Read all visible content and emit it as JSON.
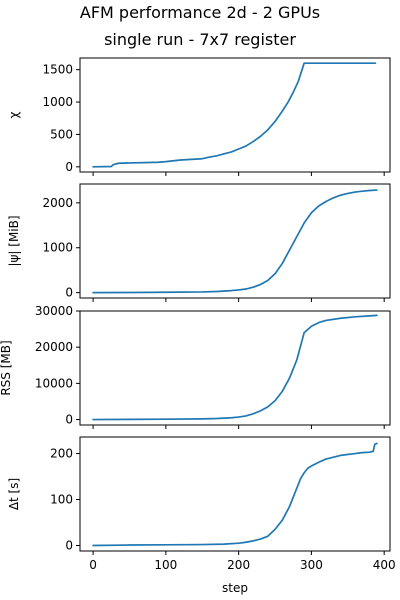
{
  "figure": {
    "title_line1": "AFM performance 2d - 2 GPUs",
    "title_line2": "single run - 7x7 register",
    "line_color": "#1f77b4"
  },
  "chart_data": [
    {
      "type": "line",
      "ylabel": "χ",
      "xlabel": "",
      "xlim": [
        -18,
        408
      ],
      "ylim": [
        -80,
        1680
      ],
      "xticks": [
        0,
        100,
        200,
        300,
        400
      ],
      "yticks": [
        0,
        500,
        1000,
        1500
      ],
      "ytick_labels": [
        "0",
        "500",
        "1000",
        "1500"
      ],
      "show_x_tick_labels": false,
      "series": [
        {
          "x": [
            0,
            25,
            28,
            35,
            50,
            70,
            90,
            100,
            120,
            150,
            160,
            170,
            180,
            190,
            200,
            210,
            220,
            230,
            240,
            250,
            260,
            268,
            275,
            282,
            290,
            300,
            320,
            340,
            360,
            380,
            388
          ],
          "y": [
            0,
            5,
            35,
            55,
            60,
            65,
            70,
            80,
            105,
            125,
            150,
            170,
            200,
            230,
            275,
            320,
            390,
            470,
            570,
            700,
            860,
            1000,
            1150,
            1320,
            1600,
            1600,
            1600,
            1600,
            1600,
            1600,
            1600
          ]
        }
      ]
    },
    {
      "type": "line",
      "ylabel": "|ψ| [MiB]",
      "xlabel": "",
      "xlim": [
        -18,
        408
      ],
      "ylim": [
        -120,
        2420
      ],
      "xticks": [
        0,
        100,
        200,
        300,
        400
      ],
      "yticks": [
        0,
        1000,
        2000
      ],
      "ytick_labels": [
        "0",
        "1000",
        "2000"
      ],
      "show_x_tick_labels": false,
      "series": [
        {
          "x": [
            0,
            50,
            100,
            150,
            170,
            190,
            200,
            210,
            220,
            230,
            240,
            250,
            260,
            270,
            280,
            290,
            300,
            310,
            320,
            330,
            340,
            350,
            360,
            370,
            380,
            390
          ],
          "y": [
            0,
            3,
            8,
            15,
            25,
            45,
            60,
            80,
            120,
            180,
            270,
            420,
            650,
            950,
            1250,
            1550,
            1780,
            1930,
            2030,
            2110,
            2170,
            2210,
            2240,
            2260,
            2275,
            2285
          ]
        }
      ]
    },
    {
      "type": "line",
      "ylabel": "RSS [MB]",
      "xlabel": "",
      "xlim": [
        -18,
        408
      ],
      "ylim": [
        -1500,
        30000
      ],
      "xticks": [
        0,
        100,
        200,
        300,
        400
      ],
      "yticks": [
        0,
        10000,
        20000,
        30000
      ],
      "ytick_labels": [
        "0",
        "10000",
        "20000",
        "30000"
      ],
      "show_x_tick_labels": false,
      "series": [
        {
          "x": [
            0,
            50,
            100,
            150,
            170,
            190,
            200,
            210,
            220,
            230,
            240,
            250,
            260,
            270,
            280,
            290,
            300,
            310,
            320,
            340,
            360,
            380,
            390
          ],
          "y": [
            0,
            50,
            100,
            200,
            300,
            500,
            700,
            1000,
            1600,
            2400,
            3500,
            5200,
            7800,
            11500,
            16500,
            24000,
            25800,
            26800,
            27400,
            28000,
            28400,
            28650,
            28800
          ]
        }
      ]
    },
    {
      "type": "line",
      "ylabel": "Δt [s]",
      "xlabel": "step",
      "xlim": [
        -18,
        408
      ],
      "ylim": [
        -12,
        236
      ],
      "xticks": [
        0,
        100,
        200,
        300,
        400
      ],
      "xtick_labels": [
        "0",
        "100",
        "200",
        "300",
        "400"
      ],
      "yticks": [
        0,
        100,
        200
      ],
      "ytick_labels": [
        "0",
        "100",
        "200"
      ],
      "show_x_tick_labels": true,
      "series": [
        {
          "x": [
            0,
            50,
            100,
            150,
            180,
            200,
            210,
            220,
            230,
            240,
            250,
            260,
            265,
            270,
            275,
            280,
            285,
            290,
            295,
            300,
            310,
            320,
            340,
            360,
            370,
            380,
            385,
            387,
            390
          ],
          "y": [
            0,
            1,
            1.5,
            2,
            3,
            5,
            7,
            10,
            14,
            20,
            35,
            55,
            70,
            85,
            105,
            125,
            145,
            158,
            168,
            173,
            181,
            188,
            196,
            200,
            202,
            203,
            205,
            220,
            222
          ]
        }
      ]
    }
  ]
}
